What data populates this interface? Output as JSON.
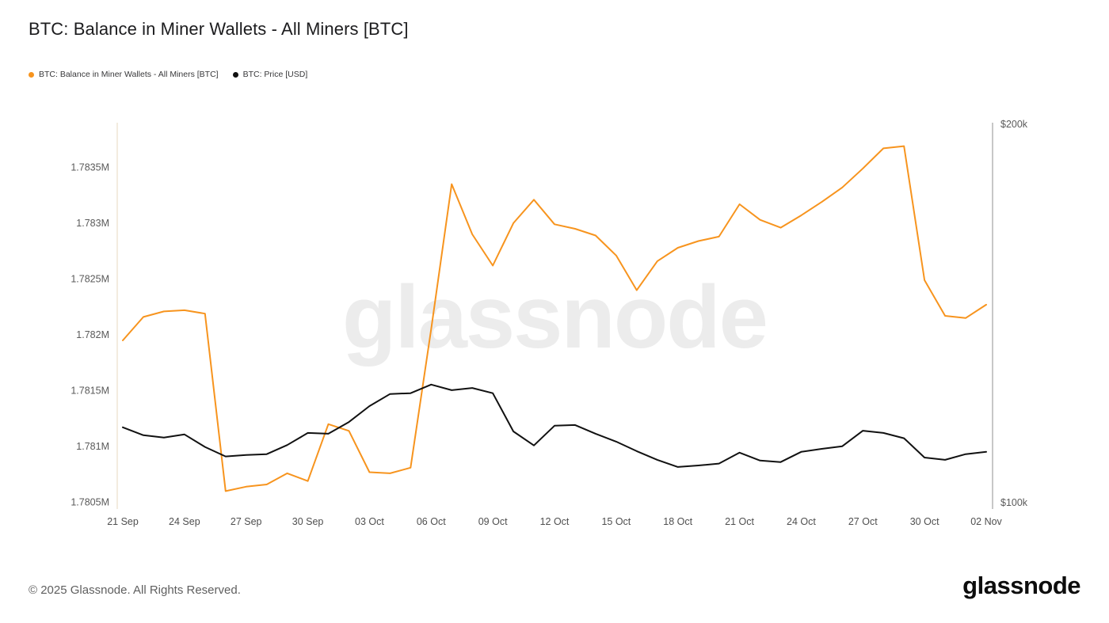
{
  "page": {
    "title": "BTC: Balance in Miner Wallets - All Miners [BTC]",
    "copyright": "© 2025 Glassnode. All Rights Reserved.",
    "brand": "glassnode",
    "watermark": "glassnode",
    "watermark_color": "#ececec"
  },
  "legend": [
    {
      "label": "BTC: Balance in Miner Wallets - All Miners [BTC]",
      "color": "#f7941e"
    },
    {
      "label": "BTC: Price [USD]",
      "color": "#111111"
    }
  ],
  "chart_data": {
    "type": "line",
    "title": "BTC: Balance in Miner Wallets - All Miners [BTC]",
    "grid": "off",
    "legend_position": "top-left",
    "dates": [
      "21 Sep",
      "22 Sep",
      "23 Sep",
      "24 Sep",
      "25 Sep",
      "26 Sep",
      "27 Sep",
      "28 Sep",
      "29 Sep",
      "30 Sep",
      "01 Oct",
      "02 Oct",
      "03 Oct",
      "04 Oct",
      "05 Oct",
      "06 Oct",
      "07 Oct",
      "08 Oct",
      "09 Oct",
      "10 Oct",
      "11 Oct",
      "12 Oct",
      "13 Oct",
      "14 Oct",
      "15 Oct",
      "16 Oct",
      "17 Oct",
      "18 Oct",
      "19 Oct",
      "20 Oct",
      "21 Oct",
      "22 Oct",
      "23 Oct",
      "24 Oct",
      "25 Oct",
      "26 Oct",
      "27 Oct",
      "28 Oct",
      "29 Oct",
      "30 Oct",
      "31 Oct",
      "01 Nov",
      "02 Nov"
    ],
    "x_tick_step": 3,
    "x_tick_labels": [
      "21 Sep",
      "24 Sep",
      "27 Sep",
      "30 Sep",
      "03 Oct",
      "06 Oct",
      "09 Oct",
      "12 Oct",
      "15 Oct",
      "18 Oct",
      "21 Oct",
      "24 Oct",
      "27 Oct",
      "30 Oct",
      "02 Nov"
    ],
    "series": [
      {
        "name": "BTC: Balance in Miner Wallets - All Miners [BTC]",
        "axis": "left",
        "unit": "M BTC",
        "color": "#f7941e",
        "values": [
          1.78195,
          1.78216,
          1.78221,
          1.78222,
          1.78219,
          1.7806,
          1.78064,
          1.78066,
          1.78076,
          1.78069,
          1.7812,
          1.78114,
          1.78077,
          1.78076,
          1.78081,
          1.78205,
          1.78335,
          1.7829,
          1.78262,
          1.783,
          1.78321,
          1.78299,
          1.78295,
          1.78289,
          1.78271,
          1.7824,
          1.78266,
          1.78278,
          1.78284,
          1.78288,
          1.78317,
          1.78303,
          1.78296,
          1.78307,
          1.78319,
          1.78332,
          1.78349,
          1.78367,
          1.78369,
          1.78249,
          1.78217,
          1.78215,
          1.78227
        ]
      },
      {
        "name": "BTC: Price [USD]",
        "axis": "right",
        "unit": "k USD",
        "color": "#111111",
        "values": [
          119.9,
          117.8,
          117.2,
          118.0,
          114.7,
          112.2,
          112.6,
          112.8,
          115.2,
          118.4,
          118.2,
          121.3,
          125.5,
          128.7,
          128.9,
          131.2,
          129.7,
          130.3,
          128.9,
          118.8,
          115.1,
          120.3,
          120.5,
          118.2,
          116.1,
          113.6,
          111.3,
          109.4,
          109.8,
          110.3,
          113.2,
          111.1,
          110.7,
          113.4,
          114.2,
          114.9,
          119.0,
          118.4,
          117.0,
          111.9,
          111.3,
          112.8,
          113.4
        ]
      }
    ],
    "left_axis": {
      "min": 1.78044,
      "max": 1.7839,
      "tick_values": [
        1.7805,
        1.781,
        1.7815,
        1.782,
        1.7825,
        1.783,
        1.7835
      ],
      "tick_labels": [
        "1.7805M",
        "1.781M",
        "1.7815M",
        "1.782M",
        "1.7825M",
        "1.783M",
        "1.7835M"
      ],
      "spine_color": "#e7d9bf",
      "label_color": "#5a5a5a"
    },
    "right_axis": {
      "min": 98.3,
      "max": 200.4,
      "tick_values": [
        100,
        200
      ],
      "tick_labels": [
        "$100k",
        "$200k"
      ],
      "spine_color": "#8f8f8f",
      "label_color": "#5a5a5a"
    }
  }
}
